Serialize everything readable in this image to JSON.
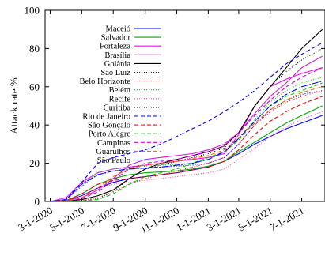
{
  "chart_data": {
    "type": "line",
    "ylabel": "Attack rate %",
    "xlabel": "",
    "ylim": [
      0,
      100
    ],
    "yticks": [
      0,
      20,
      40,
      60,
      80,
      100
    ],
    "xlim": [
      "2020-02-20",
      "2021-08-15"
    ],
    "xticks": [
      "3-1-2020",
      "5-1-2020",
      "7-1-2020",
      "9-1-2020",
      "11-1-2020",
      "1-1-2021",
      "3-1-2021",
      "5-1-2021",
      "7-1-2021"
    ],
    "legend_position": "top-left",
    "series": [
      {
        "name": "Maceió",
        "color": "#0000ff",
        "dash": "solid",
        "x": [
          "2020-03-01",
          "2020-04-01",
          "2020-05-01",
          "2020-06-01",
          "2020-07-01",
          "2020-08-01",
          "2020-09-01",
          "2020-10-01",
          "2020-11-01",
          "2020-12-01",
          "2021-01-01",
          "2021-02-01",
          "2021-03-01",
          "2021-04-01",
          "2021-05-01",
          "2021-06-01",
          "2021-07-01",
          "2021-08-10"
        ],
        "y": [
          0,
          0.5,
          3,
          7,
          10,
          12,
          13,
          14,
          15,
          16.5,
          18,
          21,
          25,
          30,
          34,
          38,
          41,
          45
        ]
      },
      {
        "name": "Salvador",
        "color": "#00aa00",
        "dash": "solid",
        "x": [
          "2020-03-01",
          "2020-04-01",
          "2020-05-01",
          "2020-06-01",
          "2020-07-01",
          "2020-08-01",
          "2020-09-01",
          "2020-10-01",
          "2020-11-01",
          "2020-12-01",
          "2021-01-01",
          "2021-02-01",
          "2021-03-01",
          "2021-04-01",
          "2021-05-01",
          "2021-06-01",
          "2021-07-01",
          "2021-08-10"
        ],
        "y": [
          0,
          0.5,
          4,
          9,
          12,
          14,
          15,
          15.5,
          16,
          17,
          18.5,
          21,
          26,
          31,
          36,
          41,
          45,
          50
        ]
      },
      {
        "name": "Fortaleza",
        "color": "#ff00ff",
        "dash": "solid",
        "x": [
          "2020-03-01",
          "2020-04-01",
          "2020-05-01",
          "2020-06-01",
          "2020-07-01",
          "2020-08-01",
          "2020-09-01",
          "2020-10-01",
          "2020-11-01",
          "2020-12-01",
          "2021-01-01",
          "2021-02-01",
          "2021-03-01",
          "2021-04-01",
          "2021-05-01",
          "2021-06-01",
          "2021-07-01",
          "2021-08-10"
        ],
        "y": [
          0,
          2,
          10,
          15,
          17,
          18,
          19,
          20,
          21,
          22,
          23,
          25,
          35,
          50,
          60,
          64,
          67,
          70
        ]
      },
      {
        "name": "Brasília",
        "color": "#cc22cc",
        "dash": "solid",
        "x": [
          "2020-03-01",
          "2020-04-01",
          "2020-05-01",
          "2020-06-01",
          "2020-07-01",
          "2020-08-01",
          "2020-09-01",
          "2020-10-01",
          "2020-11-01",
          "2020-12-01",
          "2021-01-01",
          "2021-02-01",
          "2021-03-01",
          "2021-04-01",
          "2021-05-01",
          "2021-06-01",
          "2021-07-01",
          "2021-08-10"
        ],
        "y": [
          0,
          0.5,
          2,
          6,
          12,
          19,
          22,
          23,
          24,
          25,
          27,
          30,
          36,
          46,
          55,
          62,
          70,
          76
        ]
      },
      {
        "name": "Goiânia",
        "color": "#000000",
        "dash": "solid",
        "x": [
          "2020-03-01",
          "2020-04-01",
          "2020-05-01",
          "2020-06-01",
          "2020-07-01",
          "2020-08-01",
          "2020-09-01",
          "2020-10-01",
          "2020-11-01",
          "2020-12-01",
          "2021-01-01",
          "2021-02-01",
          "2021-03-01",
          "2021-04-01",
          "2021-05-01",
          "2021-06-01",
          "2021-07-01",
          "2021-08-10"
        ],
        "y": [
          0,
          0.2,
          1,
          3,
          6,
          12,
          17,
          20,
          22,
          24,
          26,
          29,
          36,
          50,
          60,
          70,
          80,
          90
        ]
      },
      {
        "name": "São Luiz",
        "color": "#0000ff",
        "dash": "1,2",
        "x": [
          "2020-03-01",
          "2020-04-01",
          "2020-05-01",
          "2020-06-01",
          "2020-07-01",
          "2020-08-01",
          "2020-09-01",
          "2020-10-01",
          "2020-11-01",
          "2020-12-01",
          "2021-01-01",
          "2021-02-01",
          "2021-03-01",
          "2021-04-01",
          "2021-05-01",
          "2021-06-01",
          "2021-07-01",
          "2021-08-10"
        ],
        "y": [
          0,
          1,
          8,
          14,
          16,
          17,
          17.5,
          18,
          18.5,
          19,
          20,
          23,
          30,
          40,
          48,
          53,
          56,
          58
        ]
      },
      {
        "name": "Belo Horizonte",
        "color": "#ff0000",
        "dash": "1,2",
        "x": [
          "2020-03-01",
          "2020-04-01",
          "2020-05-01",
          "2020-06-01",
          "2020-07-01",
          "2020-08-01",
          "2020-09-01",
          "2020-10-01",
          "2020-11-01",
          "2020-12-01",
          "2021-01-01",
          "2021-02-01",
          "2021-03-01",
          "2021-04-01",
          "2021-05-01",
          "2021-06-01",
          "2021-07-01",
          "2021-08-10"
        ],
        "y": [
          0,
          0.1,
          0.5,
          2,
          5,
          9,
          12,
          14,
          16,
          18,
          20,
          23,
          30,
          40,
          47,
          52,
          55,
          58
        ]
      },
      {
        "name": "Belém",
        "color": "#00cc00",
        "dash": "1,2",
        "x": [
          "2020-03-01",
          "2020-04-01",
          "2020-05-01",
          "2020-06-01",
          "2020-07-01",
          "2020-08-01",
          "2020-09-01",
          "2020-10-01",
          "2020-11-01",
          "2020-12-01",
          "2021-01-01",
          "2021-02-01",
          "2021-03-01",
          "2021-04-01",
          "2021-05-01",
          "2021-06-01",
          "2021-07-01",
          "2021-08-10"
        ],
        "y": [
          0,
          1,
          9,
          15,
          17,
          18,
          18.5,
          19,
          19.5,
          20,
          22,
          26,
          33,
          43,
          52,
          58,
          62,
          65
        ]
      },
      {
        "name": "Recife",
        "color": "#ff44aa",
        "dash": "1,2",
        "x": [
          "2020-03-01",
          "2020-04-01",
          "2020-05-01",
          "2020-06-01",
          "2020-07-01",
          "2020-08-01",
          "2020-09-01",
          "2020-10-01",
          "2020-11-01",
          "2020-12-01",
          "2021-01-01",
          "2021-02-01",
          "2021-03-01",
          "2021-04-01",
          "2021-05-01",
          "2021-06-01",
          "2021-07-01",
          "2021-08-10"
        ],
        "y": [
          0,
          0.5,
          3,
          7,
          9,
          10,
          11,
          12,
          13,
          14,
          15,
          17,
          22,
          28,
          34,
          39,
          43,
          47
        ]
      },
      {
        "name": "Curitiba",
        "color": "#000000",
        "dash": "1,2",
        "x": [
          "2020-03-01",
          "2020-04-01",
          "2020-05-01",
          "2020-06-01",
          "2020-07-01",
          "2020-08-01",
          "2020-09-01",
          "2020-10-01",
          "2020-11-01",
          "2020-12-01",
          "2021-01-01",
          "2021-02-01",
          "2021-03-01",
          "2021-04-01",
          "2021-05-01",
          "2021-06-01",
          "2021-07-01",
          "2021-08-10"
        ],
        "y": [
          0,
          0.1,
          0.3,
          1.5,
          5,
          12,
          17,
          19,
          21,
          23,
          25,
          28,
          36,
          50,
          60,
          68,
          74,
          80
        ]
      },
      {
        "name": "Rio de Janeiro",
        "color": "#0000ff",
        "dash": "5,3",
        "x": [
          "2020-03-01",
          "2020-04-01",
          "2020-05-01",
          "2020-06-01",
          "2020-07-01",
          "2020-08-01",
          "2020-09-01",
          "2020-10-01",
          "2020-11-01",
          "2020-12-01",
          "2021-01-01",
          "2021-02-01",
          "2021-03-01",
          "2021-04-01",
          "2021-05-01",
          "2021-06-01",
          "2021-07-01",
          "2021-08-10"
        ],
        "y": [
          0,
          1,
          10,
          20,
          23,
          25,
          27,
          30,
          34,
          38,
          42,
          47,
          52,
          58,
          65,
          72,
          77,
          83
        ]
      },
      {
        "name": "São Gonçalo",
        "color": "#ff0000",
        "dash": "5,3",
        "x": [
          "2020-03-01",
          "2020-04-01",
          "2020-05-01",
          "2020-06-01",
          "2020-07-01",
          "2020-08-01",
          "2020-09-01",
          "2020-10-01",
          "2020-11-01",
          "2020-12-01",
          "2021-01-01",
          "2021-02-01",
          "2021-03-01",
          "2021-04-01",
          "2021-05-01",
          "2021-06-01",
          "2021-07-01",
          "2021-08-10"
        ],
        "y": [
          0,
          0.5,
          4,
          9,
          11,
          12,
          13,
          14,
          15,
          16.5,
          18,
          21,
          27,
          35,
          42,
          47,
          51,
          55
        ]
      },
      {
        "name": "Porto Alegre",
        "color": "#00cc00",
        "dash": "5,3",
        "x": [
          "2020-03-01",
          "2020-04-01",
          "2020-05-01",
          "2020-06-01",
          "2020-07-01",
          "2020-08-01",
          "2020-09-01",
          "2020-10-01",
          "2020-11-01",
          "2020-12-01",
          "2021-01-01",
          "2021-02-01",
          "2021-03-01",
          "2021-04-01",
          "2021-05-01",
          "2021-06-01",
          "2021-07-01",
          "2021-08-10"
        ],
        "y": [
          0,
          0.1,
          0.3,
          1,
          4,
          9,
          13,
          15,
          17,
          20,
          23,
          26,
          32,
          42,
          50,
          55,
          58,
          62
        ]
      },
      {
        "name": "Campinas",
        "color": "#cc00cc",
        "dash": "5,3",
        "x": [
          "2020-03-01",
          "2020-04-01",
          "2020-05-01",
          "2020-06-01",
          "2020-07-01",
          "2020-08-01",
          "2020-09-01",
          "2020-10-01",
          "2020-11-01",
          "2020-12-01",
          "2021-01-01",
          "2021-02-01",
          "2021-03-01",
          "2021-04-01",
          "2021-05-01",
          "2021-06-01",
          "2021-07-01",
          "2021-08-10"
        ],
        "y": [
          0,
          0.2,
          1.5,
          5,
          11,
          17,
          20,
          21,
          22,
          24,
          26,
          29,
          36,
          45,
          53,
          60,
          65,
          70
        ]
      },
      {
        "name": "Guarulhos",
        "color": "#ff6600",
        "dash": "5,3",
        "x": [
          "2020-03-01",
          "2020-04-01",
          "2020-05-01",
          "2020-06-01",
          "2020-07-01",
          "2020-08-01",
          "2020-09-01",
          "2020-10-01",
          "2020-11-01",
          "2020-12-01",
          "2021-01-01",
          "2021-02-01",
          "2021-03-01",
          "2021-04-01",
          "2021-05-01",
          "2021-06-01",
          "2021-07-01",
          "2021-08-10"
        ],
        "y": [
          0,
          0.3,
          2,
          7,
          13,
          17,
          19,
          20,
          21,
          22.5,
          24,
          27,
          33,
          41,
          48,
          53,
          57,
          60
        ]
      },
      {
        "name": "São Paulo",
        "color": "#0000ff",
        "dash": "8,2,2,2",
        "x": [
          "2020-03-01",
          "2020-04-01",
          "2020-05-01",
          "2020-06-01",
          "2020-07-01",
          "2020-08-01",
          "2020-09-01",
          "2020-10-01",
          "2020-11-01",
          "2020-12-01",
          "2021-01-01",
          "2021-02-01",
          "2021-03-01",
          "2021-04-01",
          "2021-05-01",
          "2021-06-01",
          "2021-07-01",
          "2021-08-10"
        ],
        "y": [
          0,
          1,
          9,
          14,
          16,
          17,
          17.5,
          18,
          19,
          20,
          22,
          26,
          33,
          42,
          50,
          56,
          60,
          63
        ]
      }
    ]
  }
}
